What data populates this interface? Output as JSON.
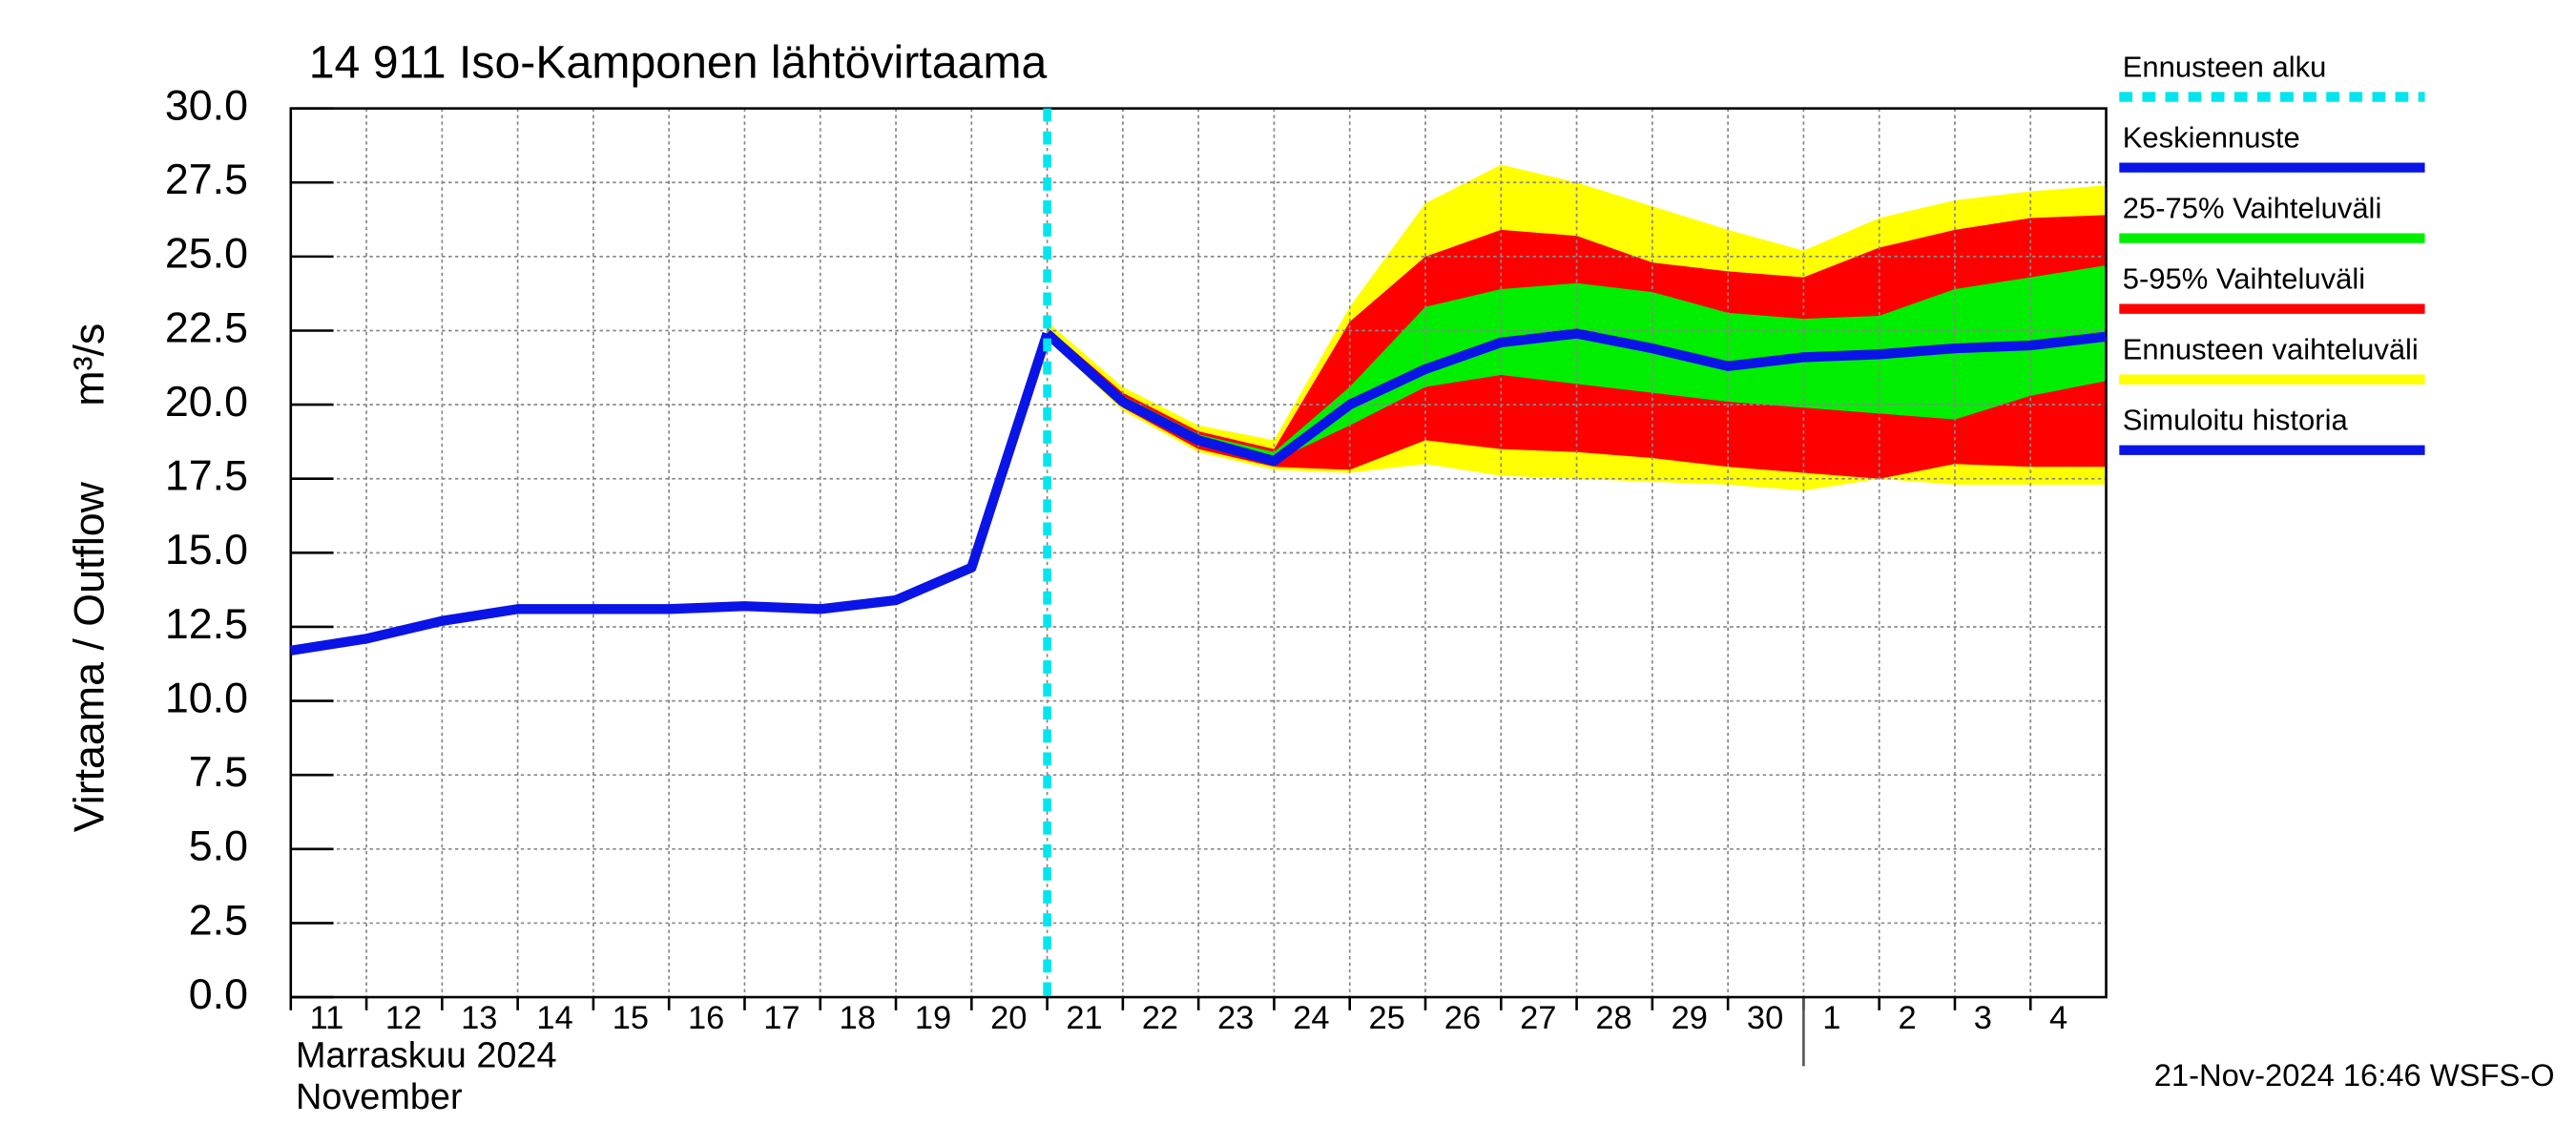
{
  "chart_data": {
    "type": "line",
    "title": "14 911 Iso-Kamponen lähtövirtaama",
    "y_label": "Virtaama / Outflow",
    "y_unit": "m³/s",
    "x_label": [
      "Marraskuu 2024",
      "November"
    ],
    "footer": "21-Nov-2024 16:46 WSFS-O",
    "xlim": [
      0,
      24
    ],
    "xticks": [
      {
        "value": 0,
        "label": "11"
      },
      {
        "value": 1,
        "label": "12"
      },
      {
        "value": 2,
        "label": "13"
      },
      {
        "value": 3,
        "label": "14"
      },
      {
        "value": 4,
        "label": "15"
      },
      {
        "value": 5,
        "label": "16"
      },
      {
        "value": 6,
        "label": "17"
      },
      {
        "value": 7,
        "label": "18"
      },
      {
        "value": 8,
        "label": "19"
      },
      {
        "value": 9,
        "label": "20"
      },
      {
        "value": 10,
        "label": "21"
      },
      {
        "value": 11,
        "label": "22"
      },
      {
        "value": 12,
        "label": "23"
      },
      {
        "value": 13,
        "label": "24"
      },
      {
        "value": 14,
        "label": "25"
      },
      {
        "value": 15,
        "label": "26"
      },
      {
        "value": 16,
        "label": "27"
      },
      {
        "value": 17,
        "label": "28"
      },
      {
        "value": 18,
        "label": "29"
      },
      {
        "value": 19,
        "label": "30"
      },
      {
        "value": 20,
        "label": "1"
      },
      {
        "value": 21,
        "label": "2"
      },
      {
        "value": 22,
        "label": "3"
      },
      {
        "value": 23,
        "label": "4"
      }
    ],
    "ylim": [
      0,
      30
    ],
    "yticks": [
      {
        "value": 0,
        "label": "0.0"
      },
      {
        "value": 2.5,
        "label": "2.5"
      },
      {
        "value": 5,
        "label": "5.0"
      },
      {
        "value": 7.5,
        "label": "7.5"
      },
      {
        "value": 10,
        "label": "10.0"
      },
      {
        "value": 12.5,
        "label": "12.5"
      },
      {
        "value": 15,
        "label": "15.0"
      },
      {
        "value": 17.5,
        "label": "17.5"
      },
      {
        "value": 20,
        "label": "20.0"
      },
      {
        "value": 22.5,
        "label": "22.5"
      },
      {
        "value": 25,
        "label": "25.0"
      },
      {
        "value": 27.5,
        "label": "27.5"
      },
      {
        "value": 30,
        "label": "30.0"
      }
    ],
    "grid": true,
    "series": [
      {
        "name": "Ennusteen alku",
        "color": "#00e5ee",
        "kind": "vline",
        "x": 10
      },
      {
        "name": "Keskiennuste",
        "color": "#0a14e6",
        "kind": "line",
        "x": [
          10,
          11,
          12,
          13,
          14,
          15,
          16,
          17,
          18,
          19,
          20,
          21,
          22,
          23,
          24
        ],
        "values": [
          22.4,
          20.1,
          18.8,
          18.1,
          20.0,
          21.2,
          22.1,
          22.4,
          21.9,
          21.3,
          21.6,
          21.7,
          21.9,
          22.0,
          22.3
        ]
      },
      {
        "name": "25-75% Vaihteluväli",
        "color": "#00ee00",
        "kind": "band",
        "x": [
          10,
          11,
          12,
          13,
          14,
          15,
          16,
          17,
          18,
          19,
          20,
          21,
          22,
          23,
          24
        ],
        "lower": [
          22.4,
          20.0,
          18.7,
          18.1,
          19.3,
          20.6,
          21.0,
          20.7,
          20.4,
          20.1,
          19.9,
          19.7,
          19.5,
          20.3,
          20.8
        ],
        "upper": [
          22.5,
          20.3,
          19.0,
          18.4,
          20.6,
          23.3,
          23.9,
          24.1,
          23.8,
          23.1,
          22.9,
          23.0,
          23.9,
          24.3,
          24.7
        ]
      },
      {
        "name": "5-95% Vaihteluväli",
        "color": "#ff0000",
        "kind": "band",
        "x": [
          10,
          11,
          12,
          13,
          14,
          15,
          16,
          17,
          18,
          19,
          20,
          21,
          22,
          23,
          24
        ],
        "lower": [
          22.3,
          19.9,
          18.5,
          17.9,
          17.8,
          18.8,
          18.5,
          18.4,
          18.2,
          17.9,
          17.7,
          17.5,
          18.0,
          17.9,
          17.9
        ],
        "upper": [
          22.6,
          20.4,
          19.1,
          18.5,
          22.8,
          25.0,
          25.9,
          25.7,
          24.8,
          24.5,
          24.3,
          25.3,
          25.9,
          26.3,
          26.4
        ]
      },
      {
        "name": "Ennusteen vaihteluväli",
        "color": "#ffff00",
        "kind": "band",
        "x": [
          10,
          11,
          12,
          13,
          14,
          15,
          16,
          17,
          18,
          19,
          20,
          21,
          22,
          23,
          24
        ],
        "lower": [
          22.2,
          19.8,
          18.4,
          17.8,
          17.7,
          18.0,
          17.6,
          17.5,
          17.4,
          17.3,
          17.1,
          17.5,
          17.3,
          17.3,
          17.3
        ],
        "upper": [
          22.8,
          20.6,
          19.3,
          18.8,
          23.3,
          26.8,
          28.1,
          27.5,
          26.7,
          25.9,
          25.2,
          26.3,
          26.9,
          27.2,
          27.4
        ]
      },
      {
        "name": "Simuloitu historia",
        "color": "#0a14e6",
        "kind": "line",
        "x": [
          0,
          1,
          2,
          3,
          4,
          5,
          6,
          7,
          8,
          9,
          10
        ],
        "values": [
          11.7,
          12.1,
          12.7,
          13.1,
          13.1,
          13.1,
          13.2,
          13.1,
          13.4,
          14.5,
          22.4
        ]
      }
    ]
  }
}
